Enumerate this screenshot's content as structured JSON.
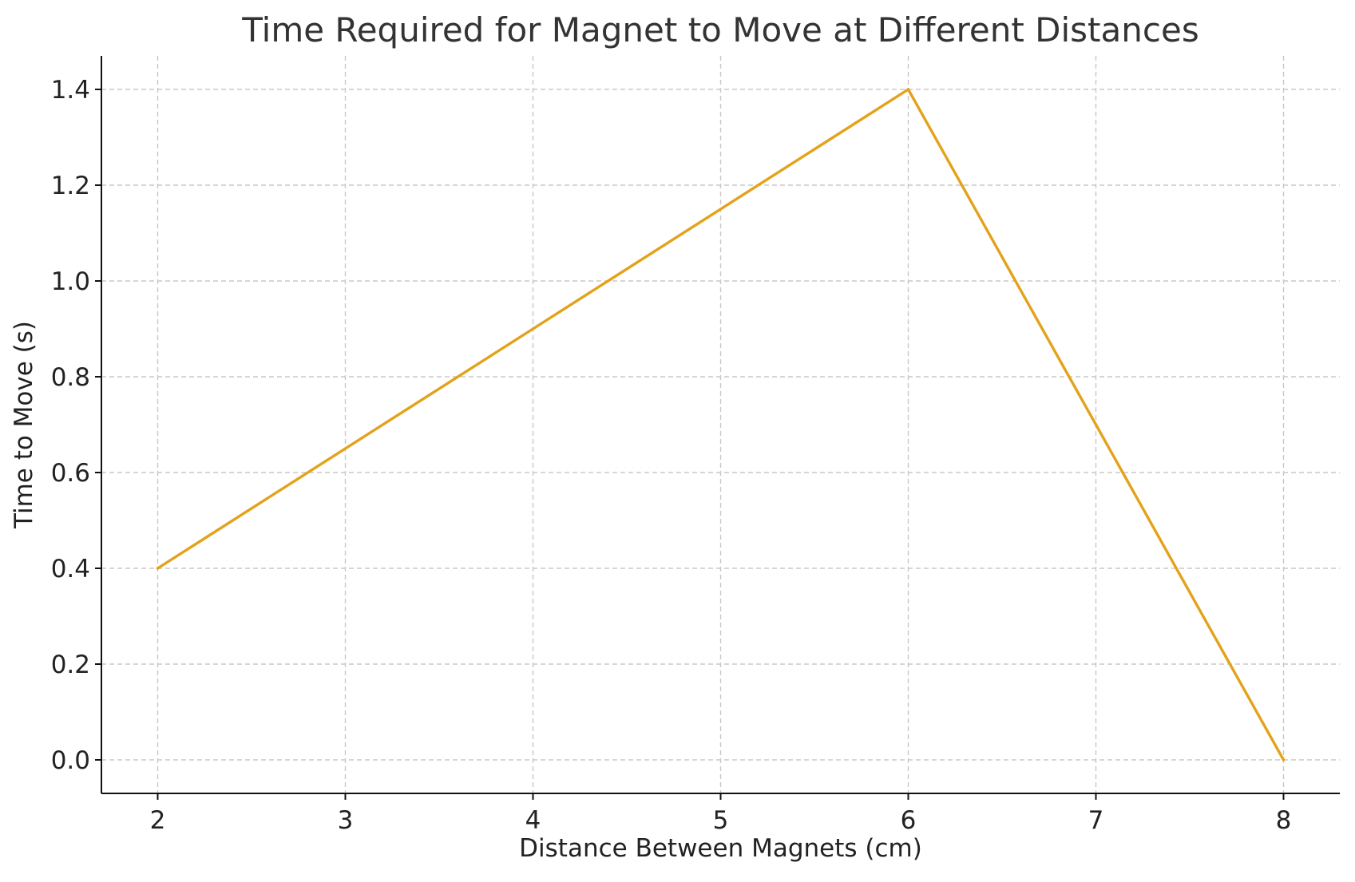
{
  "chart_data": {
    "type": "line",
    "title": "Time Required for Magnet to Move at Different Distances",
    "xlabel": "Distance Between Magnets (cm)",
    "ylabel": "Time to Move (s)",
    "x": [
      2,
      4,
      6,
      7,
      8
    ],
    "series": [
      {
        "values": [
          0.4,
          0.9,
          1.4,
          0.7,
          0.0
        ],
        "color": "#E3A21A"
      }
    ],
    "xticks": [
      2,
      3,
      4,
      5,
      6,
      7,
      8
    ],
    "xtick_labels": [
      "2",
      "3",
      "4",
      "5",
      "6",
      "7",
      "8"
    ],
    "yticks": [
      0.0,
      0.2,
      0.4,
      0.6,
      0.8,
      1.0,
      1.2,
      1.4
    ],
    "ytick_labels": [
      "0.0",
      "0.2",
      "0.4",
      "0.6",
      "0.8",
      "1.0",
      "1.2",
      "1.4"
    ],
    "xlim": [
      1.7,
      8.3
    ],
    "ylim": [
      -0.07,
      1.47
    ],
    "grid": true,
    "legend": "none"
  }
}
